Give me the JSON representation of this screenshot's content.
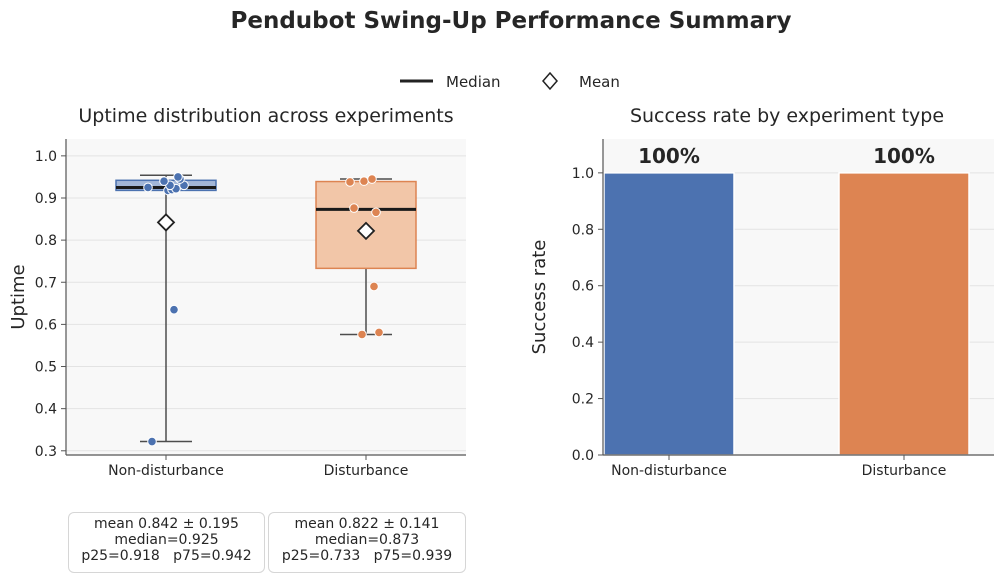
{
  "title": "Pendubot Swing-Up Performance Summary",
  "legend": {
    "items": [
      {
        "label": "Median",
        "marker": "line",
        "color": "#222222"
      },
      {
        "label": "Mean",
        "marker": "diamond",
        "color": "#222222"
      }
    ],
    "placement": "top-center"
  },
  "chart_data": [
    {
      "type": "box",
      "title": "Uptime distribution across experiments",
      "xlabel": "",
      "ylabel": "Uptime",
      "ylim": [
        0.29,
        1.04
      ],
      "yticks": [
        "0.3",
        "0.4",
        "0.5",
        "0.6",
        "0.7",
        "0.8",
        "0.9",
        "1.0"
      ],
      "grid": true,
      "categories": [
        "Non-disturbance",
        "Disturbance"
      ],
      "series": [
        {
          "category": "Non-disturbance",
          "color": "#4c72b0",
          "fill": "#a3b7d8",
          "whisker_low": 0.322,
          "q1": 0.918,
          "median": 0.925,
          "q3": 0.942,
          "whisker_high": 0.954,
          "mean": 0.842,
          "points": [
            0.322,
            0.635,
            0.918,
            0.92,
            0.922,
            0.925,
            0.93,
            0.93,
            0.94,
            0.945,
            0.95
          ],
          "stats_lines": [
            "mean 0.842 ± 0.195",
            "median=0.925",
            "p25=0.918   p75=0.942"
          ]
        },
        {
          "category": "Disturbance",
          "color": "#dd8452",
          "fill": "#f2c6a8",
          "whisker_low": 0.576,
          "q1": 0.733,
          "median": 0.873,
          "q3": 0.939,
          "whisker_high": 0.945,
          "mean": 0.822,
          "points": [
            0.576,
            0.581,
            0.69,
            0.866,
            0.876,
            0.938,
            0.94,
            0.945
          ],
          "stats_lines": [
            "mean 0.822 ± 0.141",
            "median=0.873",
            "p25=0.733   p75=0.939"
          ]
        }
      ]
    },
    {
      "type": "bar",
      "title": "Success rate by experiment type",
      "xlabel": "",
      "ylabel": "Success rate",
      "ylim": [
        0,
        1.12
      ],
      "yticks": [
        "0.0",
        "0.2",
        "0.4",
        "0.6",
        "0.8",
        "1.0"
      ],
      "grid": true,
      "categories": [
        "Non-disturbance",
        "Disturbance"
      ],
      "values": [
        1.0,
        1.0
      ],
      "labels": [
        "100%",
        "100%"
      ],
      "colors": [
        "#4c72b0",
        "#dd8452"
      ]
    }
  ]
}
